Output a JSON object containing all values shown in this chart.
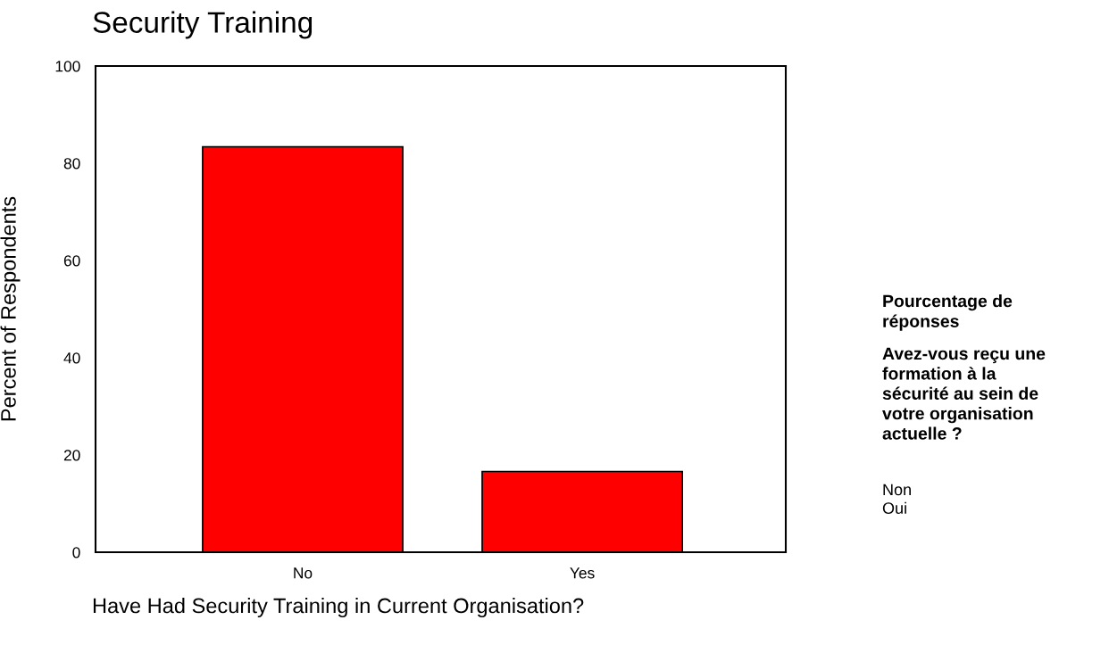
{
  "chart_data": {
    "type": "bar",
    "title": "Security Training",
    "xlabel": "Have Had Security Training in Current Organisation?",
    "ylabel": "Percent of Respondents",
    "categories": [
      "No",
      "Yes"
    ],
    "values": [
      83.4,
      16.6
    ],
    "color": "#ff0000",
    "ylim": [
      0,
      100
    ],
    "yticks": [
      0,
      20,
      40,
      60,
      80,
      100
    ],
    "grid": false,
    "legend": false,
    "annotations": [
      "Pourcentage de\nréponses",
      "Avez-vous reçu une\nformation à la\nsécurité au sein de\nvotre organisation\nactuelle ?",
      "Non\nOui"
    ]
  }
}
